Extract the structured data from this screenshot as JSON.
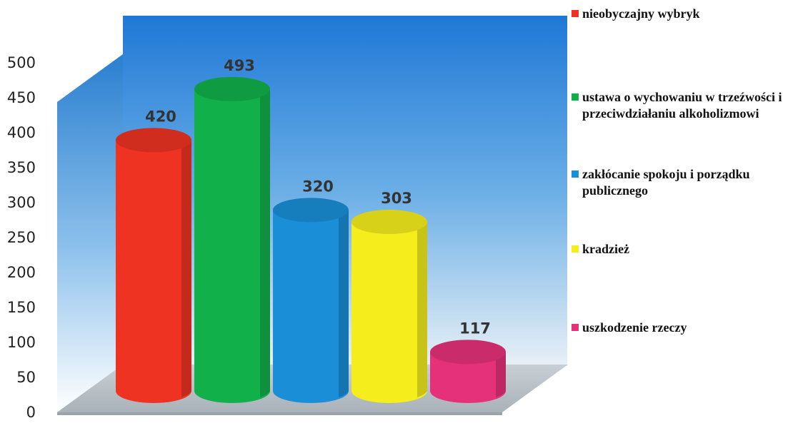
{
  "chart_data": {
    "type": "bar",
    "style": "3d-cylinder",
    "title": "",
    "xlabel": "",
    "ylabel": "",
    "ylim": [
      0,
      500
    ],
    "yticks": [
      0,
      50,
      100,
      150,
      200,
      250,
      300,
      350,
      400,
      450,
      500
    ],
    "grid": false,
    "legend_position": "right",
    "categories": [
      "nieobyczajny wybryk",
      "ustawa o wychowaniu w trzeźwości i przeciwdziałaniu alkoholizmowi",
      "zakłócanie spokoju i porządku publicznego",
      "kradzież",
      "uszkodzenie rzeczy"
    ],
    "values": [
      420,
      493,
      320,
      303,
      117
    ],
    "colors": [
      "#ee3322",
      "#11b04a",
      "#1a8fd8",
      "#f6ee1c",
      "#e4317a"
    ],
    "wall_color": "#1f7fd8",
    "floor_color": "#bfc8cf"
  }
}
